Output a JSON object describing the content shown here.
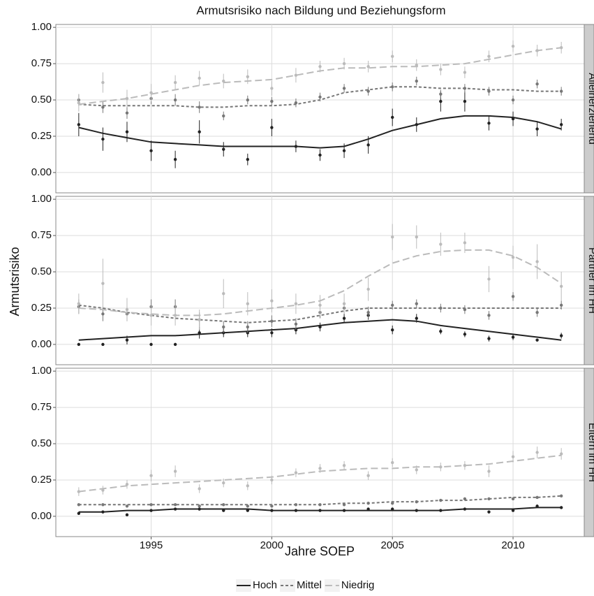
{
  "figure": {
    "title": "Armutsrisiko nach Bildung und Beziehungsform",
    "x_label": "Jahre SOEP",
    "y_label": "Armutsrisiko",
    "legend_position": "bottom"
  },
  "chart_data": [
    {
      "type": "line",
      "facet": "Alleinerziehend",
      "x": [
        1992,
        1993,
        1994,
        1995,
        1996,
        1997,
        1998,
        1999,
        2000,
        2001,
        2002,
        2003,
        2004,
        2005,
        2006,
        2007,
        2008,
        2009,
        2010,
        2011,
        2012
      ],
      "xlim": [
        1991.05,
        2012.95
      ],
      "xticks": [
        1995,
        2000,
        2005,
        2010
      ],
      "ylim": [
        -0.14,
        1.02
      ],
      "yticks": [
        {
          "value": 0,
          "label": "0.00"
        },
        {
          "value": 0.25,
          "label": "0.25"
        },
        {
          "value": 0.5,
          "label": "0.50"
        },
        {
          "value": 0.75,
          "label": "0.75"
        },
        {
          "value": 1,
          "label": "1.00"
        }
      ],
      "grid": true,
      "series": [
        {
          "name": "Hoch",
          "color": "#222222",
          "dash": "none",
          "values": [
            0.33,
            0.23,
            0.28,
            0.15,
            0.09,
            0.28,
            0.16,
            0.09,
            0.31,
            0.18,
            0.12,
            0.15,
            0.19,
            0.38,
            0.33,
            0.49,
            0.49,
            0.34,
            0.37,
            0.3,
            0.33
          ],
          "errors": [
            0.08,
            0.08,
            0.07,
            0.07,
            0.06,
            0.08,
            0.05,
            0.04,
            0.06,
            0.04,
            0.04,
            0.05,
            0.06,
            0.06,
            0.05,
            0.07,
            0.07,
            0.05,
            0.05,
            0.05,
            0.04
          ],
          "trend": [
            0.31,
            0.27,
            0.24,
            0.21,
            0.2,
            0.19,
            0.18,
            0.18,
            0.18,
            0.18,
            0.17,
            0.18,
            0.23,
            0.29,
            0.33,
            0.37,
            0.39,
            0.39,
            0.38,
            0.35,
            0.3
          ]
        },
        {
          "name": "Mittel",
          "color": "#777777",
          "dash": "4,3",
          "values": [
            0.5,
            0.45,
            0.41,
            0.51,
            0.5,
            0.45,
            0.39,
            0.5,
            0.49,
            0.48,
            0.52,
            0.58,
            0.56,
            0.59,
            0.63,
            0.54,
            0.58,
            0.56,
            0.5,
            0.61,
            0.56
          ],
          "errors": [
            0.04,
            0.04,
            0.04,
            0.04,
            0.04,
            0.04,
            0.03,
            0.03,
            0.03,
            0.03,
            0.03,
            0.03,
            0.03,
            0.03,
            0.03,
            0.03,
            0.03,
            0.03,
            0.03,
            0.03,
            0.03
          ],
          "trend": [
            0.47,
            0.46,
            0.46,
            0.46,
            0.46,
            0.45,
            0.45,
            0.46,
            0.46,
            0.47,
            0.5,
            0.55,
            0.57,
            0.59,
            0.59,
            0.58,
            0.58,
            0.57,
            0.57,
            0.56,
            0.56
          ]
        },
        {
          "name": "Niedrig",
          "color": "#bbbbbb",
          "dash": "10,5",
          "values": [
            0.48,
            0.62,
            0.51,
            0.55,
            0.62,
            0.65,
            0.63,
            0.66,
            0.58,
            0.67,
            0.73,
            0.75,
            0.73,
            0.8,
            0.74,
            0.71,
            0.69,
            0.8,
            0.87,
            0.84,
            0.86
          ],
          "errors": [
            0.06,
            0.07,
            0.06,
            0.06,
            0.05,
            0.05,
            0.05,
            0.05,
            0.05,
            0.05,
            0.04,
            0.04,
            0.04,
            0.04,
            0.04,
            0.04,
            0.04,
            0.04,
            0.04,
            0.04,
            0.04
          ],
          "trend": [
            0.47,
            0.49,
            0.51,
            0.54,
            0.57,
            0.6,
            0.62,
            0.63,
            0.64,
            0.67,
            0.7,
            0.72,
            0.72,
            0.73,
            0.73,
            0.74,
            0.75,
            0.78,
            0.81,
            0.84,
            0.86
          ]
        }
      ]
    },
    {
      "type": "line",
      "facet": "Partner im HH",
      "x": [
        1992,
        1993,
        1994,
        1995,
        1996,
        1997,
        1998,
        1999,
        2000,
        2001,
        2002,
        2003,
        2004,
        2005,
        2006,
        2007,
        2008,
        2009,
        2010,
        2011,
        2012
      ],
      "xlim": [
        1991.05,
        2012.95
      ],
      "xticks": [
        1995,
        2000,
        2005,
        2010
      ],
      "ylim": [
        -0.14,
        1.02
      ],
      "yticks": [
        {
          "value": 0,
          "label": "0.00"
        },
        {
          "value": 0.25,
          "label": "0.25"
        },
        {
          "value": 0.5,
          "label": "0.50"
        },
        {
          "value": 0.75,
          "label": "0.75"
        },
        {
          "value": 1,
          "label": "1.00"
        }
      ],
      "grid": true,
      "series": [
        {
          "name": "Hoch",
          "color": "#222222",
          "dash": "none",
          "values": [
            0.0,
            0.0,
            0.03,
            0.0,
            0.0,
            0.08,
            0.08,
            0.08,
            0.08,
            0.1,
            0.12,
            0.18,
            0.2,
            0.1,
            0.18,
            0.09,
            0.07,
            0.04,
            0.05,
            0.03,
            0.06
          ],
          "errors": [
            0.01,
            0.01,
            0.03,
            0.01,
            0.01,
            0.04,
            0.03,
            0.03,
            0.03,
            0.03,
            0.03,
            0.03,
            0.03,
            0.03,
            0.03,
            0.02,
            0.02,
            0.02,
            0.02,
            0.01,
            0.02
          ],
          "trend": [
            0.03,
            0.04,
            0.05,
            0.06,
            0.06,
            0.07,
            0.08,
            0.09,
            0.1,
            0.11,
            0.13,
            0.15,
            0.16,
            0.17,
            0.16,
            0.13,
            0.11,
            0.09,
            0.07,
            0.05,
            0.03
          ]
        },
        {
          "name": "Mittel",
          "color": "#777777",
          "dash": "4,3",
          "values": [
            0.26,
            0.21,
            0.21,
            0.26,
            0.26,
            0.17,
            0.12,
            0.12,
            0.16,
            0.14,
            0.22,
            0.25,
            0.22,
            0.27,
            0.28,
            0.25,
            0.24,
            0.2,
            0.33,
            0.22,
            0.27
          ],
          "errors": [
            0.05,
            0.05,
            0.05,
            0.05,
            0.05,
            0.05,
            0.04,
            0.04,
            0.04,
            0.04,
            0.04,
            0.04,
            0.04,
            0.03,
            0.03,
            0.03,
            0.03,
            0.03,
            0.03,
            0.03,
            0.03
          ],
          "trend": [
            0.27,
            0.25,
            0.22,
            0.2,
            0.18,
            0.17,
            0.16,
            0.15,
            0.16,
            0.17,
            0.2,
            0.23,
            0.25,
            0.25,
            0.25,
            0.25,
            0.25,
            0.25,
            0.25,
            0.25,
            0.25
          ]
        },
        {
          "name": "Niedrig",
          "color": "#bbbbbb",
          "dash": "10,5",
          "values": [
            0.28,
            0.42,
            0.24,
            0.2,
            0.2,
            0.17,
            0.35,
            0.28,
            0.3,
            0.28,
            0.27,
            0.28,
            0.38,
            0.74,
            0.74,
            0.69,
            0.7,
            0.45,
            0.6,
            0.57,
            0.4
          ],
          "errors": [
            0.07,
            0.17,
            0.08,
            0.07,
            0.07,
            0.07,
            0.1,
            0.08,
            0.08,
            0.07,
            0.07,
            0.07,
            0.08,
            0.09,
            0.08,
            0.08,
            0.07,
            0.09,
            0.08,
            0.12,
            0.1
          ],
          "trend": [
            0.25,
            0.24,
            0.22,
            0.21,
            0.2,
            0.2,
            0.21,
            0.23,
            0.25,
            0.27,
            0.3,
            0.37,
            0.47,
            0.56,
            0.61,
            0.64,
            0.65,
            0.65,
            0.61,
            0.53,
            0.42
          ]
        }
      ]
    },
    {
      "type": "line",
      "facet": "Eltern im HH",
      "x": [
        1992,
        1993,
        1994,
        1995,
        1996,
        1997,
        1998,
        1999,
        2000,
        2001,
        2002,
        2003,
        2004,
        2005,
        2006,
        2007,
        2008,
        2009,
        2010,
        2011,
        2012
      ],
      "xlim": [
        1991.05,
        2012.95
      ],
      "xticks": [
        1995,
        2000,
        2005,
        2010
      ],
      "ylim": [
        -0.14,
        1.02
      ],
      "yticks": [
        {
          "value": 0,
          "label": "0.00"
        },
        {
          "value": 0.25,
          "label": "0.25"
        },
        {
          "value": 0.5,
          "label": "0.50"
        },
        {
          "value": 0.75,
          "label": "0.75"
        },
        {
          "value": 1,
          "label": "1.00"
        }
      ],
      "grid": true,
      "series": [
        {
          "name": "Hoch",
          "color": "#222222",
          "dash": "none",
          "values": [
            0.02,
            0.03,
            0.01,
            0.04,
            0.05,
            0.05,
            0.04,
            0.04,
            0.04,
            0.04,
            0.04,
            0.04,
            0.05,
            0.05,
            0.04,
            0.04,
            0.05,
            0.03,
            0.04,
            0.07,
            0.06
          ],
          "errors": [
            0.01,
            0.01,
            0.01,
            0.01,
            0.01,
            0.01,
            0.01,
            0.01,
            0.01,
            0.01,
            0.01,
            0.01,
            0.01,
            0.01,
            0.01,
            0.01,
            0.01,
            0.01,
            0.01,
            0.01,
            0.01
          ],
          "trend": [
            0.03,
            0.03,
            0.04,
            0.04,
            0.05,
            0.05,
            0.05,
            0.05,
            0.04,
            0.04,
            0.04,
            0.04,
            0.04,
            0.04,
            0.04,
            0.04,
            0.05,
            0.05,
            0.05,
            0.06,
            0.06
          ]
        },
        {
          "name": "Mittel",
          "color": "#777777",
          "dash": "4,3",
          "values": [
            0.08,
            0.08,
            0.07,
            0.08,
            0.08,
            0.07,
            0.08,
            0.07,
            0.07,
            0.08,
            0.08,
            0.08,
            0.09,
            0.09,
            0.1,
            0.11,
            0.12,
            0.12,
            0.12,
            0.13,
            0.14
          ],
          "errors": [
            0.01,
            0.01,
            0.01,
            0.01,
            0.01,
            0.01,
            0.01,
            0.01,
            0.01,
            0.01,
            0.01,
            0.01,
            0.01,
            0.01,
            0.01,
            0.01,
            0.01,
            0.01,
            0.01,
            0.01,
            0.01
          ],
          "trend": [
            0.08,
            0.08,
            0.08,
            0.08,
            0.08,
            0.08,
            0.08,
            0.08,
            0.08,
            0.08,
            0.08,
            0.09,
            0.09,
            0.1,
            0.1,
            0.11,
            0.11,
            0.12,
            0.13,
            0.13,
            0.14
          ]
        },
        {
          "name": "Niedrig",
          "color": "#bbbbbb",
          "dash": "10,5",
          "values": [
            0.17,
            0.18,
            0.22,
            0.28,
            0.31,
            0.19,
            0.23,
            0.21,
            0.25,
            0.3,
            0.33,
            0.35,
            0.28,
            0.37,
            0.32,
            0.34,
            0.35,
            0.31,
            0.41,
            0.44,
            0.43
          ],
          "errors": [
            0.03,
            0.03,
            0.03,
            0.04,
            0.04,
            0.03,
            0.03,
            0.03,
            0.03,
            0.03,
            0.03,
            0.03,
            0.03,
            0.03,
            0.03,
            0.03,
            0.03,
            0.04,
            0.04,
            0.04,
            0.04
          ],
          "trend": [
            0.17,
            0.19,
            0.21,
            0.22,
            0.23,
            0.24,
            0.25,
            0.26,
            0.27,
            0.29,
            0.31,
            0.32,
            0.33,
            0.33,
            0.34,
            0.34,
            0.35,
            0.36,
            0.38,
            0.4,
            0.42
          ]
        }
      ]
    }
  ]
}
